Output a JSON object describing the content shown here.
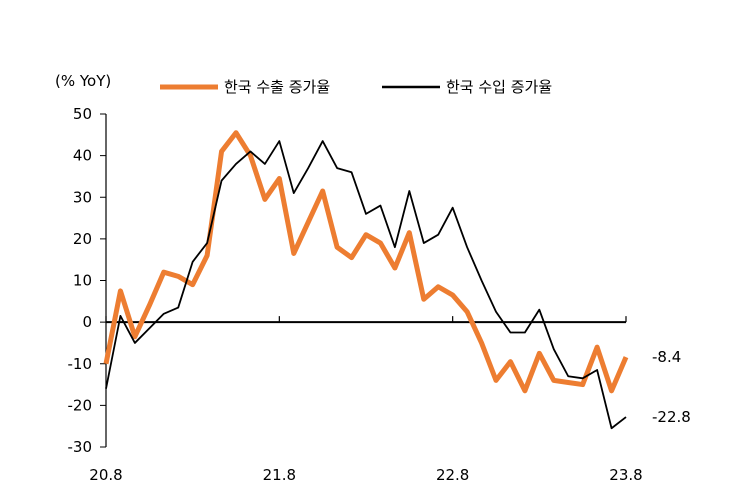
{
  "chart_data": {
    "type": "line",
    "ylabel": "(% YoY)",
    "ylim": [
      -30,
      50
    ],
    "yticks": [
      50,
      40,
      30,
      20,
      10,
      0,
      -10,
      -20,
      -30
    ],
    "xticks": [
      {
        "label": "20.8",
        "index": 0
      },
      {
        "label": "21.8",
        "index": 12
      },
      {
        "label": "22.8",
        "index": 24
      },
      {
        "label": "23.8",
        "index": 36
      }
    ],
    "legend": "top",
    "grid": false,
    "series": [
      {
        "name": "한국 수출 증가율",
        "color": "#ED7D31",
        "values": [
          -10,
          7.5,
          -3.5,
          4,
          12,
          11,
          9,
          16,
          41,
          45.5,
          40,
          29.5,
          34.5,
          16.5,
          24,
          31.5,
          18,
          15.5,
          21,
          19,
          13,
          21.5,
          5.5,
          8.5,
          6.5,
          2.5,
          -5,
          -14,
          -9.5,
          -16.5,
          -7.5,
          -14,
          -14.5,
          -15,
          -6,
          -16.5,
          -8.4
        ],
        "end_label": "-8.4"
      },
      {
        "name": "한국 수입 증가율",
        "color": "#000000",
        "values": [
          -16,
          1.5,
          -5,
          -1.5,
          2,
          3.5,
          14.5,
          19,
          34,
          38,
          41,
          38,
          43.5,
          31,
          37,
          43.5,
          37,
          36,
          26,
          28,
          18,
          31.5,
          19,
          21,
          27.5,
          18,
          10,
          2.5,
          -2.5,
          -2.5,
          3,
          -6.5,
          -13,
          -13.5,
          -11.5,
          -25.5,
          -22.8
        ],
        "end_label": "-22.8"
      }
    ]
  }
}
